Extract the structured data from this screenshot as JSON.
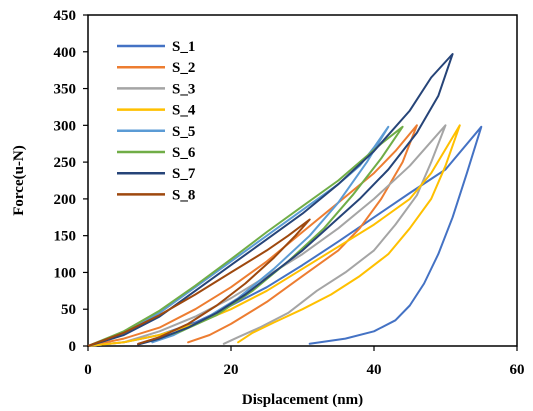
{
  "chart_data": {
    "type": "line",
    "xlabel": "Displacement (nm)",
    "ylabel": "Force(u-N)",
    "xlim": [
      0,
      60
    ],
    "ylim": [
      0,
      450
    ],
    "xticks": [
      0,
      20,
      40,
      60
    ],
    "yticks": [
      0,
      50,
      100,
      150,
      200,
      250,
      300,
      350,
      400,
      450
    ],
    "grid": false,
    "legend_position": "top-left",
    "series": [
      {
        "name": "S_1",
        "color": "#4472C4",
        "loading": [
          [
            0,
            0
          ],
          [
            5,
            5
          ],
          [
            10,
            15
          ],
          [
            15,
            32
          ],
          [
            20,
            55
          ],
          [
            25,
            80
          ],
          [
            30,
            110
          ],
          [
            35,
            142
          ],
          [
            40,
            175
          ],
          [
            45,
            208
          ],
          [
            50,
            240
          ],
          [
            55,
            298
          ]
        ],
        "unloading": [
          [
            55,
            298
          ],
          [
            53,
            235
          ],
          [
            51,
            175
          ],
          [
            49,
            125
          ],
          [
            47,
            85
          ],
          [
            45,
            55
          ],
          [
            43,
            35
          ],
          [
            40,
            20
          ],
          [
            36,
            10
          ],
          [
            31,
            3
          ]
        ]
      },
      {
        "name": "S_2",
        "color": "#ED7D31",
        "loading": [
          [
            0,
            0
          ],
          [
            5,
            10
          ],
          [
            10,
            25
          ],
          [
            15,
            50
          ],
          [
            20,
            80
          ],
          [
            25,
            115
          ],
          [
            30,
            155
          ],
          [
            35,
            195
          ],
          [
            40,
            235
          ],
          [
            43,
            265
          ],
          [
            46,
            300
          ]
        ],
        "unloading": [
          [
            46,
            300
          ],
          [
            44,
            250
          ],
          [
            41,
            200
          ],
          [
            38,
            160
          ],
          [
            35,
            130
          ],
          [
            30,
            95
          ],
          [
            25,
            60
          ],
          [
            20,
            30
          ],
          [
            17,
            15
          ],
          [
            14,
            5
          ]
        ]
      },
      {
        "name": "S_3",
        "color": "#A5A5A5",
        "loading": [
          [
            0,
            0
          ],
          [
            5,
            5
          ],
          [
            10,
            20
          ],
          [
            15,
            40
          ],
          [
            20,
            65
          ],
          [
            25,
            95
          ],
          [
            30,
            125
          ],
          [
            35,
            160
          ],
          [
            40,
            200
          ],
          [
            45,
            245
          ],
          [
            50,
            300
          ]
        ],
        "unloading": [
          [
            50,
            300
          ],
          [
            48,
            250
          ],
          [
            46,
            205
          ],
          [
            43,
            165
          ],
          [
            40,
            130
          ],
          [
            36,
            100
          ],
          [
            32,
            75
          ],
          [
            28,
            45
          ],
          [
            24,
            25
          ],
          [
            21,
            12
          ],
          [
            19,
            3
          ]
        ]
      },
      {
        "name": "S_4",
        "color": "#FFC000",
        "loading": [
          [
            0,
            0
          ],
          [
            5,
            5
          ],
          [
            10,
            15
          ],
          [
            15,
            30
          ],
          [
            20,
            50
          ],
          [
            25,
            75
          ],
          [
            30,
            105
          ],
          [
            35,
            135
          ],
          [
            40,
            165
          ],
          [
            45,
            200
          ],
          [
            48,
            235
          ],
          [
            52,
            300
          ]
        ],
        "unloading": [
          [
            52,
            300
          ],
          [
            50,
            245
          ],
          [
            48,
            200
          ],
          [
            45,
            160
          ],
          [
            42,
            125
          ],
          [
            38,
            95
          ],
          [
            34,
            70
          ],
          [
            30,
            50
          ],
          [
            26,
            32
          ],
          [
            23,
            18
          ],
          [
            21,
            5
          ]
        ]
      },
      {
        "name": "S_5",
        "color": "#5B9BD5",
        "loading": [
          [
            0,
            0
          ],
          [
            5,
            18
          ],
          [
            10,
            45
          ],
          [
            15,
            80
          ],
          [
            20,
            115
          ],
          [
            25,
            150
          ],
          [
            30,
            185
          ],
          [
            35,
            220
          ],
          [
            38,
            245
          ],
          [
            40,
            270
          ],
          [
            42,
            298
          ]
        ],
        "unloading": [
          [
            42,
            298
          ],
          [
            39,
            250
          ],
          [
            35,
            195
          ],
          [
            31,
            150
          ],
          [
            26,
            105
          ],
          [
            21,
            65
          ],
          [
            16,
            35
          ],
          [
            12,
            15
          ],
          [
            9,
            5
          ]
        ]
      },
      {
        "name": "S_6",
        "color": "#70AD47",
        "loading": [
          [
            0,
            0
          ],
          [
            5,
            20
          ],
          [
            10,
            48
          ],
          [
            15,
            82
          ],
          [
            20,
            118
          ],
          [
            25,
            155
          ],
          [
            30,
            190
          ],
          [
            35,
            225
          ],
          [
            38,
            250
          ],
          [
            41,
            275
          ],
          [
            44,
            298
          ]
        ],
        "unloading": [
          [
            44,
            298
          ],
          [
            41,
            255
          ],
          [
            37,
            205
          ],
          [
            33,
            160
          ],
          [
            28,
            115
          ],
          [
            23,
            75
          ],
          [
            18,
            42
          ],
          [
            13,
            20
          ],
          [
            9,
            8
          ]
        ]
      },
      {
        "name": "S_7",
        "color": "#264478",
        "loading": [
          [
            0,
            0
          ],
          [
            5,
            15
          ],
          [
            10,
            40
          ],
          [
            15,
            75
          ],
          [
            20,
            110
          ],
          [
            25,
            145
          ],
          [
            30,
            180
          ],
          [
            35,
            220
          ],
          [
            40,
            265
          ],
          [
            45,
            320
          ],
          [
            48,
            365
          ],
          [
            51,
            397
          ]
        ],
        "unloading": [
          [
            51,
            397
          ],
          [
            49,
            340
          ],
          [
            46,
            290
          ],
          [
            42,
            240
          ],
          [
            38,
            200
          ],
          [
            34,
            165
          ],
          [
            30,
            130
          ],
          [
            26,
            100
          ],
          [
            22,
            70
          ],
          [
            18,
            45
          ],
          [
            14,
            25
          ],
          [
            10,
            10
          ],
          [
            7,
            2
          ]
        ]
      },
      {
        "name": "S_8",
        "color": "#9E480E",
        "loading": [
          [
            0,
            0
          ],
          [
            5,
            18
          ],
          [
            10,
            42
          ],
          [
            15,
            70
          ],
          [
            20,
            100
          ],
          [
            25,
            130
          ],
          [
            28,
            150
          ],
          [
            31,
            172
          ]
        ],
        "unloading": [
          [
            31,
            172
          ],
          [
            29,
            150
          ],
          [
            26,
            120
          ],
          [
            22,
            85
          ],
          [
            18,
            55
          ],
          [
            14,
            30
          ],
          [
            10,
            12
          ],
          [
            7,
            3
          ]
        ]
      }
    ]
  }
}
